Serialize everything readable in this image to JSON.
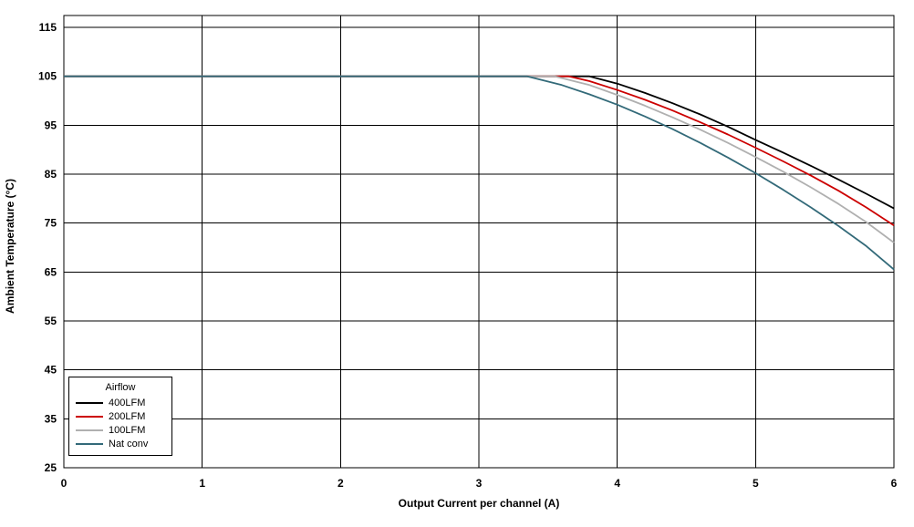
{
  "chart_data": {
    "type": "line",
    "title": "",
    "xlabel": "Output Current per channel (A)",
    "ylabel": "Ambient Temperature (°C)",
    "xlim": [
      0,
      6
    ],
    "ylim": [
      25,
      115
    ],
    "x_ticks": [
      0,
      1,
      2,
      3,
      4,
      5,
      6
    ],
    "y_ticks": [
      25,
      35,
      45,
      55,
      65,
      75,
      85,
      95,
      105,
      115
    ],
    "grid": true,
    "grid_color": "#000000",
    "background_color": "#ffffff",
    "legend": {
      "title": "Airflow",
      "position": "bottom-left"
    },
    "series": [
      {
        "name": "400LFM",
        "color": "#000000",
        "points": [
          [
            0,
            105
          ],
          [
            3.8,
            105
          ],
          [
            4,
            103.5
          ],
          [
            4.2,
            101.6
          ],
          [
            4.4,
            99.5
          ],
          [
            4.6,
            97.2
          ],
          [
            4.8,
            94.7
          ],
          [
            5,
            92
          ],
          [
            5.2,
            89.4
          ],
          [
            5.4,
            86.7
          ],
          [
            5.6,
            83.9
          ],
          [
            5.8,
            81
          ],
          [
            6,
            78
          ]
        ]
      },
      {
        "name": "200LFM",
        "color": "#cc0000",
        "points": [
          [
            0,
            105
          ],
          [
            3.65,
            105
          ],
          [
            3.8,
            104
          ],
          [
            4,
            102.2
          ],
          [
            4.2,
            100.2
          ],
          [
            4.4,
            98
          ],
          [
            4.6,
            95.6
          ],
          [
            4.8,
            93.1
          ],
          [
            5,
            90.4
          ],
          [
            5.2,
            87.6
          ],
          [
            5.4,
            84.7
          ],
          [
            5.6,
            81.6
          ],
          [
            5.8,
            78.2
          ],
          [
            6,
            74.5
          ]
        ]
      },
      {
        "name": "100LFM",
        "color": "#b0b0b0",
        "points": [
          [
            0,
            105
          ],
          [
            3.55,
            105
          ],
          [
            3.8,
            103.2
          ],
          [
            4,
            101.2
          ],
          [
            4.2,
            99
          ],
          [
            4.4,
            96.6
          ],
          [
            4.6,
            94.1
          ],
          [
            4.8,
            91.4
          ],
          [
            5,
            88.5
          ],
          [
            5.2,
            85.5
          ],
          [
            5.4,
            82.3
          ],
          [
            5.6,
            78.9
          ],
          [
            5.8,
            75.2
          ],
          [
            6,
            71
          ]
        ]
      },
      {
        "name": "Nat conv",
        "color": "#336a79",
        "points": [
          [
            0,
            105
          ],
          [
            3.35,
            105
          ],
          [
            3.6,
            103.2
          ],
          [
            3.8,
            101.3
          ],
          [
            4,
            99.2
          ],
          [
            4.2,
            96.8
          ],
          [
            4.4,
            94.2
          ],
          [
            4.6,
            91.4
          ],
          [
            4.8,
            88.4
          ],
          [
            5,
            85.2
          ],
          [
            5.2,
            81.8
          ],
          [
            5.4,
            78.2
          ],
          [
            5.6,
            74.4
          ],
          [
            5.8,
            70.3
          ],
          [
            6,
            65.5
          ]
        ]
      }
    ]
  }
}
